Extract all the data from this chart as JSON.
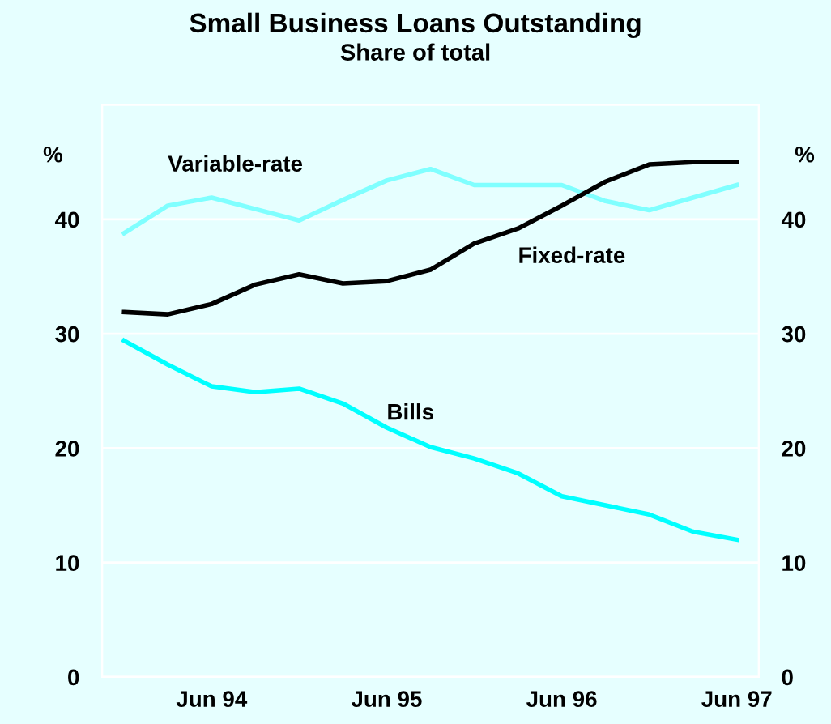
{
  "chart_data": {
    "type": "line",
    "title": "Small Business Loans Outstanding",
    "subtitle": "Share of total",
    "ylabel": "%",
    "y2label": "%",
    "categories": [
      null,
      null,
      "Jun 94",
      null,
      null,
      null,
      "Jun 95",
      null,
      null,
      null,
      "Jun 96",
      null,
      null,
      null,
      "Jun 97"
    ],
    "series": [
      {
        "name": "Variable-rate",
        "color": "#80ffff",
        "values": [
          38.8,
          41.2,
          41.9,
          40.9,
          39.9,
          41.7,
          43.4,
          44.4,
          43.0,
          43.0,
          43.0,
          41.6,
          40.8,
          41.9,
          43.0
        ]
      },
      {
        "name": "Fixed-rate",
        "color": "#000000",
        "values": [
          31.9,
          31.7,
          32.6,
          34.3,
          35.2,
          34.4,
          34.6,
          35.6,
          37.9,
          39.2,
          41.2,
          43.3,
          44.8,
          45.0,
          45.0
        ]
      },
      {
        "name": "Bills",
        "color": "#00ffff",
        "values": [
          29.4,
          27.3,
          25.4,
          24.9,
          25.2,
          23.9,
          21.8,
          20.1,
          19.1,
          17.8,
          15.8,
          15.0,
          14.2,
          12.7,
          12.0
        ]
      }
    ],
    "ylim": [
      0,
      50
    ],
    "yticks": [
      0,
      10,
      20,
      30,
      40
    ],
    "y2lim": [
      0,
      50
    ],
    "y2ticks": [
      0,
      10,
      20,
      30,
      40
    ],
    "grid": "y",
    "marker": "none",
    "line_style": "solid"
  }
}
